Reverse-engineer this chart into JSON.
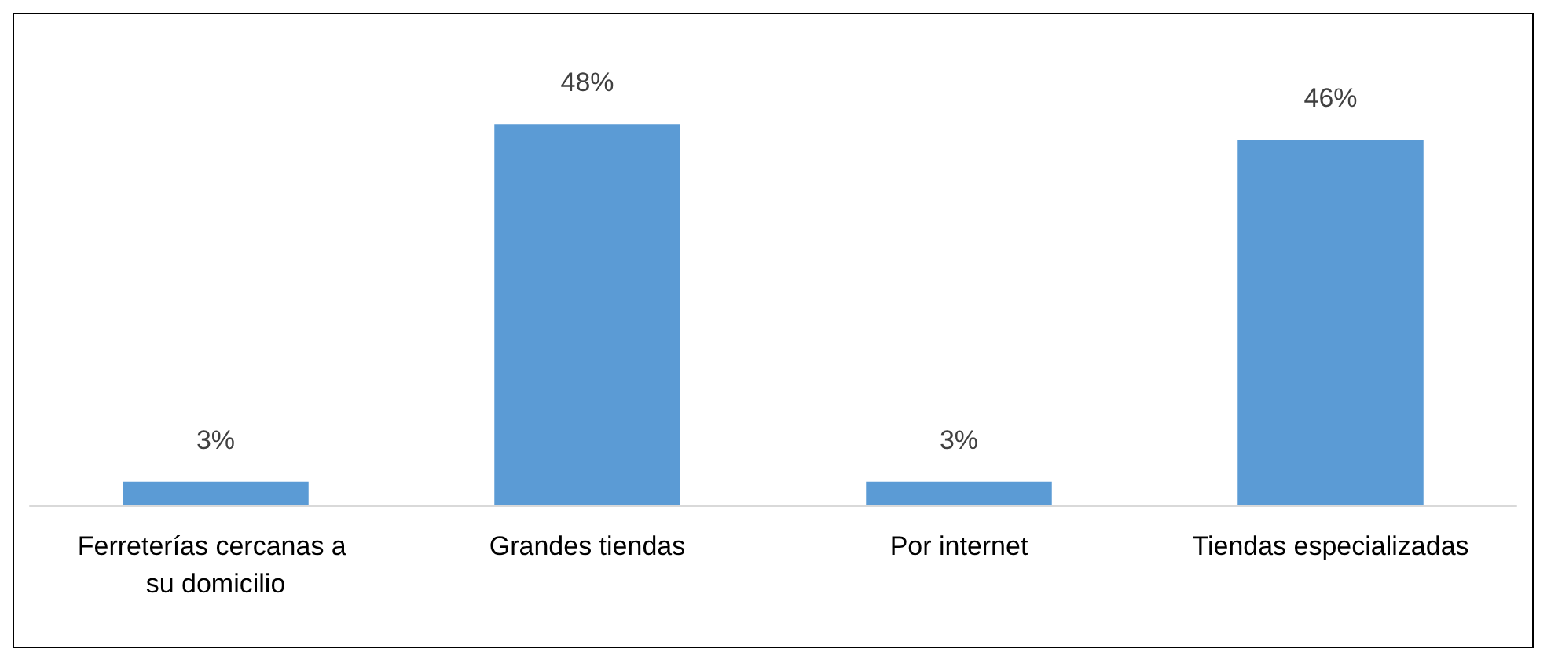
{
  "chart_data": {
    "type": "bar",
    "categories": [
      "Ferreterías cercanas a su domicilio",
      "Grandes tiendas",
      "Por internet",
      "Tiendas especializadas"
    ],
    "values": [
      3,
      48,
      3,
      46
    ],
    "color": "#5b9bd5",
    "data_labels": true,
    "value_labels": [
      "3%",
      "48%",
      "3%",
      "46%"
    ]
  }
}
